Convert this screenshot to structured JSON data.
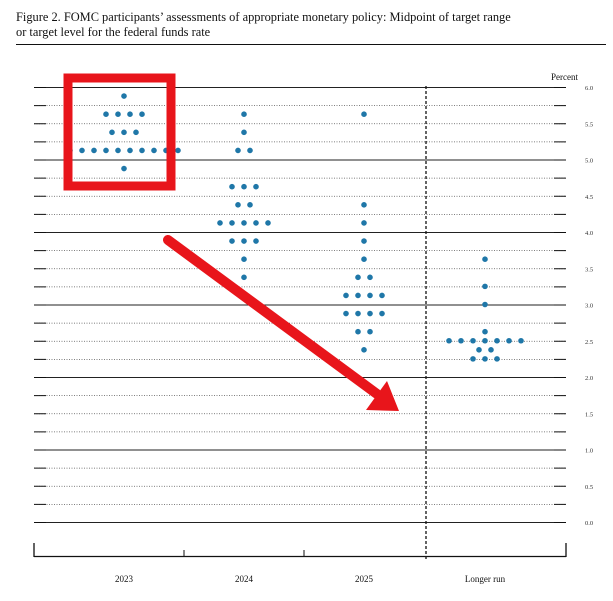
{
  "figure": {
    "title_line1": "Figure 2.  FOMC participants’ assessments of appropriate monetary policy:  Midpoint of target range",
    "title_line2": "or target level for the federal funds rate"
  },
  "chart_data": {
    "type": "scatter",
    "subtype": "dot-plot",
    "title": "FOMC participants’ assessments of appropriate monetary policy: Midpoint of target range or target level for the federal funds rate",
    "ylabel": "Percent",
    "y_axis_side": "right",
    "ylim": [
      0.0,
      6.0
    ],
    "y_ticks": [
      "0.0",
      "0.5",
      "1.0",
      "1.5",
      "2.0",
      "2.5",
      "3.0",
      "3.5",
      "4.0",
      "4.5",
      "5.0",
      "5.5",
      "6.0"
    ],
    "categories": [
      "2023",
      "2024",
      "2025",
      "Longer run"
    ],
    "grid": true,
    "dots": [
      {
        "category": "2023",
        "counts": [
          [
            5.875,
            1
          ],
          [
            5.625,
            4
          ],
          [
            5.375,
            3
          ],
          [
            5.125,
            10
          ],
          [
            4.875,
            1
          ]
        ]
      },
      {
        "category": "2024",
        "counts": [
          [
            5.625,
            1
          ],
          [
            5.375,
            1
          ],
          [
            5.125,
            2
          ],
          [
            4.625,
            3
          ],
          [
            4.375,
            2
          ],
          [
            4.125,
            5
          ],
          [
            3.875,
            3
          ],
          [
            3.625,
            1
          ],
          [
            3.375,
            1
          ]
        ]
      },
      {
        "category": "2025",
        "counts": [
          [
            5.625,
            1
          ],
          [
            4.375,
            1
          ],
          [
            4.125,
            1
          ],
          [
            3.875,
            1
          ],
          [
            3.625,
            1
          ],
          [
            3.375,
            2
          ],
          [
            3.125,
            4
          ],
          [
            2.875,
            4
          ],
          [
            2.625,
            2
          ],
          [
            2.375,
            1
          ]
        ]
      },
      {
        "category": "Longer run",
        "counts": [
          [
            3.625,
            1
          ],
          [
            3.25,
            1
          ],
          [
            3.0,
            1
          ],
          [
            2.625,
            1
          ],
          [
            2.5,
            7
          ],
          [
            2.375,
            2
          ],
          [
            2.25,
            3
          ]
        ]
      }
    ],
    "dot_color": "#1f77a8",
    "annotations": [
      {
        "kind": "rectangle-highlight",
        "color": "#e8151b",
        "around": "2023 dots from 4.875 to 5.875"
      },
      {
        "kind": "arrow",
        "color": "#e8151b",
        "direction": "down-right"
      }
    ]
  }
}
